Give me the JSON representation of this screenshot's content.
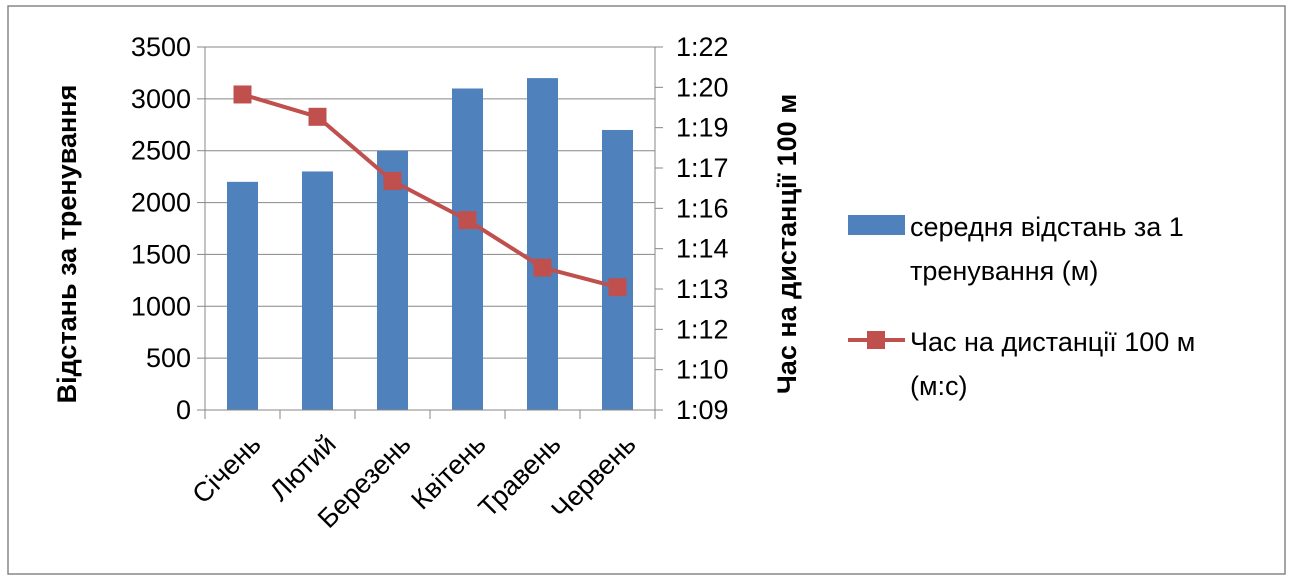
{
  "chart_data": {
    "type": "bar",
    "categories": [
      "Січень",
      "Лютий",
      "Березень",
      "Квітень",
      "Травень",
      "Червень"
    ],
    "y_left": {
      "label": "Відстань за тренування",
      "range": [
        0,
        3500
      ],
      "ticks": [
        "0",
        "500",
        "1000",
        "1500",
        "2000",
        "2500",
        "3000",
        "3500"
      ]
    },
    "y_right": {
      "label": "Час на дистанції 100 м",
      "range_seconds": [
        69,
        82
      ],
      "ticks": [
        "1:09",
        "1:10",
        "1:12",
        "1:13",
        "1:14",
        "1:16",
        "1:17",
        "1:19",
        "1:20",
        "1:22"
      ]
    },
    "series": [
      {
        "name": "середня відстань за 1 тренування (м)",
        "legend_lines": [
          "середня відстань за 1",
          "тренування (м)"
        ],
        "type": "bar",
        "axis": "left",
        "color": "#4F81BD",
        "values": [
          2200,
          2300,
          2500,
          3100,
          3200,
          2700
        ]
      },
      {
        "name": "Час на дистанції 100 м (м:с)",
        "legend_lines": [
          "Час на дистанції 100 м",
          "(м:с)"
        ],
        "type": "line",
        "axis": "right",
        "color": "#C0504D",
        "values": [
          "1:20.3",
          "1:19.5",
          "1:17.2",
          "1:15.8",
          "1:14.1",
          "1:13.4"
        ],
        "values_seconds": [
          80.3,
          79.5,
          77.2,
          75.8,
          74.1,
          73.4
        ]
      }
    ],
    "legend_position": "right",
    "grid": true
  }
}
